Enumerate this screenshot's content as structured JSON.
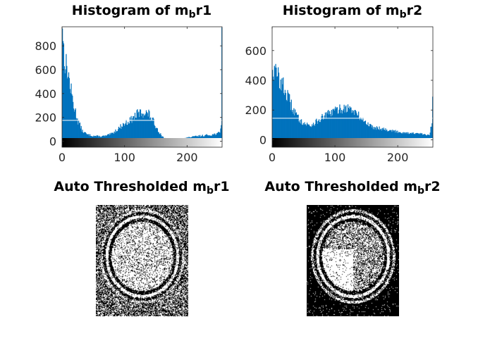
{
  "figure": {
    "titles": [
      {
        "prefix": "Histogram of m",
        "sub": "b",
        "suffix": "r1"
      },
      {
        "prefix": "Histogram of m",
        "sub": "b",
        "suffix": "r2"
      },
      {
        "prefix": "Auto Thresholded m",
        "sub": "b",
        "suffix": "r1"
      },
      {
        "prefix": "Auto Thresholded m",
        "sub": "b",
        "suffix": "r2"
      }
    ]
  },
  "colors": {
    "bar": "#0072BD",
    "axis": "#262626",
    "threshold_line": "#ffffff"
  },
  "chart_data": [
    {
      "type": "bar",
      "title": "Histogram of m_b r1",
      "xlim": [
        0,
        256
      ],
      "ylim": [
        -50,
        960
      ],
      "xticks": [
        0,
        100,
        200
      ],
      "yticks": [
        0,
        200,
        400,
        600,
        800
      ],
      "threshold_value": 175,
      "profile": [
        [
          0,
          945
        ],
        [
          2,
          760
        ],
        [
          5,
          640
        ],
        [
          8,
          610
        ],
        [
          12,
          470
        ],
        [
          18,
          300
        ],
        [
          25,
          170
        ],
        [
          32,
          85
        ],
        [
          40,
          55
        ],
        [
          50,
          45
        ],
        [
          60,
          40
        ],
        [
          70,
          45
        ],
        [
          80,
          65
        ],
        [
          90,
          110
        ],
        [
          100,
          150
        ],
        [
          110,
          180
        ],
        [
          120,
          230
        ],
        [
          130,
          240
        ],
        [
          138,
          230
        ],
        [
          145,
          170
        ],
        [
          150,
          120
        ],
        [
          158,
          50
        ],
        [
          165,
          20
        ],
        [
          175,
          10
        ],
        [
          190,
          20
        ],
        [
          205,
          35
        ],
        [
          220,
          45
        ],
        [
          240,
          55
        ],
        [
          252,
          70
        ],
        [
          254,
          150
        ],
        [
          255,
          955
        ]
      ]
    },
    {
      "type": "bar",
      "title": "Histogram of m_b r2",
      "xlim": [
        0,
        256
      ],
      "ylim": [
        -50,
        760
      ],
      "xticks": [
        0,
        100,
        200
      ],
      "yticks": [
        0,
        200,
        400,
        600
      ],
      "threshold_value": 145,
      "profile": [
        [
          0,
          470
        ],
        [
          5,
          450
        ],
        [
          10,
          420
        ],
        [
          20,
          330
        ],
        [
          30,
          230
        ],
        [
          40,
          150
        ],
        [
          50,
          110
        ],
        [
          60,
          95
        ],
        [
          70,
          120
        ],
        [
          80,
          150
        ],
        [
          90,
          175
        ],
        [
          100,
          195
        ],
        [
          110,
          210
        ],
        [
          120,
          215
        ],
        [
          130,
          190
        ],
        [
          140,
          150
        ],
        [
          150,
          110
        ],
        [
          160,
          85
        ],
        [
          175,
          75
        ],
        [
          190,
          60
        ],
        [
          205,
          50
        ],
        [
          220,
          45
        ],
        [
          235,
          40
        ],
        [
          250,
          30
        ],
        [
          254,
          120
        ],
        [
          255,
          290
        ]
      ]
    }
  ]
}
